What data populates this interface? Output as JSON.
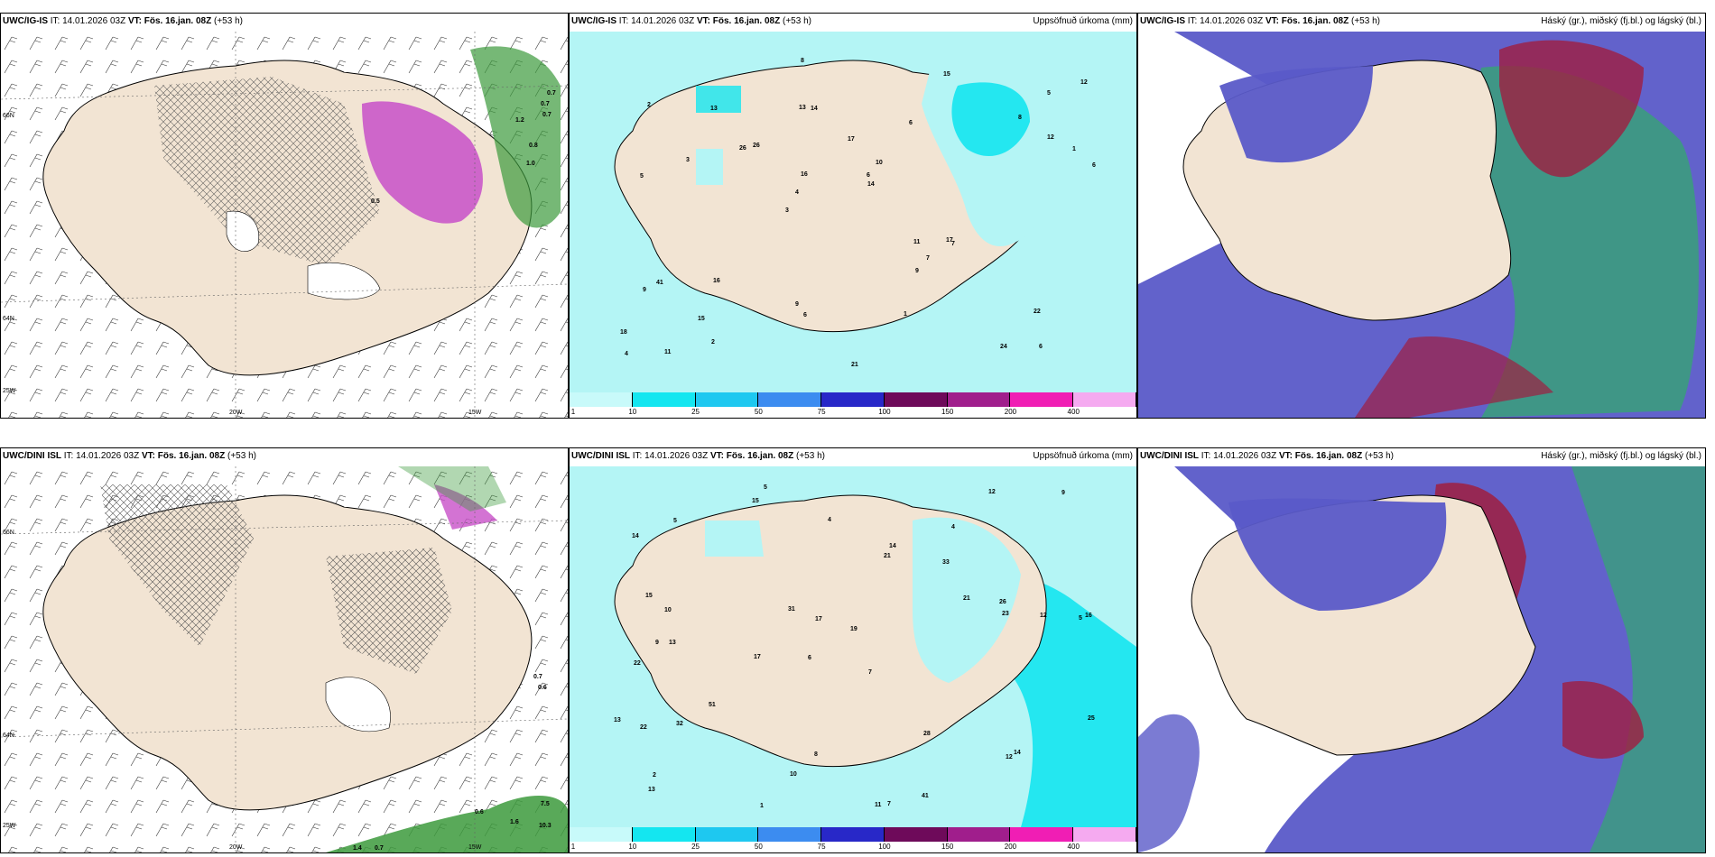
{
  "panels": [
    {
      "id": "tl",
      "model": "UWC/IG-IS",
      "it_label": "IT:",
      "it": "14.01.2026 03Z",
      "vt_label": "VT:",
      "vt": "Fös. 16.jan. 08Z",
      "lead": "(+53 h)",
      "right": ""
    },
    {
      "id": "tm",
      "model": "UWC/IG-IS",
      "it_label": "IT:",
      "it": "14.01.2026 03Z",
      "vt_label": "VT:",
      "vt": "Fös. 16.jan. 08Z",
      "lead": "(+53 h)",
      "right": "Uppsöfnuð úrkoma (mm)"
    },
    {
      "id": "tr",
      "model": "UWC/IG-IS",
      "it_label": "IT:",
      "it": "14.01.2026 03Z",
      "vt_label": "VT:",
      "vt": "Fös. 16.jan. 08Z",
      "lead": "(+53 h)",
      "right": "Háský (gr.), miðský (fj.bl.) og lágský (bl.)"
    },
    {
      "id": "bl",
      "model": "UWC/DINI ISL",
      "it_label": "IT:",
      "it": "14.01.2026 03Z",
      "vt_label": "VT:",
      "vt": "Fös. 16.jan. 08Z",
      "lead": "(+53 h)",
      "right": ""
    },
    {
      "id": "bm",
      "model": "UWC/DINI ISL",
      "it_label": "IT:",
      "it": "14.01.2026 03Z",
      "vt_label": "VT:",
      "vt": "Fös. 16.jan. 08Z",
      "lead": "(+53 h)",
      "right": "Uppsöfnuð úrkoma (mm)"
    },
    {
      "id": "br",
      "model": "UWC/DINI ISL",
      "it_label": "IT:",
      "it": "14.01.2026 03Z",
      "vt_label": "VT:",
      "vt": "Fös. 16.jan. 08Z",
      "lead": "(+53 h)",
      "right": "Háský (gr.), miðský (fj.bl.) og lágský (bl.)"
    }
  ],
  "colorbar": {
    "ticks": [
      "1",
      "10",
      "25",
      "50",
      "75",
      "100",
      "150",
      "200",
      "400"
    ],
    "colors": [
      "#c8fafa",
      "#14e6f0",
      "#1ec8f0",
      "#3c8cf0",
      "#2828c8",
      "#6e0a5a",
      "#a01e8c",
      "#f01eb4",
      "#f5aaf0"
    ]
  },
  "axis_labels": {
    "lon": [
      "20W",
      "15W"
    ],
    "lat": [
      "66N",
      "64N",
      "25W"
    ]
  },
  "colors": {
    "land": "#f2e4d3",
    "sea": "#ffffff",
    "precip_light": "#b4f5f5",
    "precip_mid": "#14e6f0",
    "low_cloud": "#5a5ac8",
    "mid_cloud": "#3aa07a",
    "high_cloud": "#a01e40",
    "pink_precip": "#c850c8",
    "green_precip": "#3c9a3c"
  },
  "precip_numbers_top": [
    "6",
    "5",
    "5",
    "3",
    "6",
    "11",
    "13",
    "17",
    "41",
    "26",
    "18",
    "15",
    "14",
    "10",
    "7",
    "2",
    "8",
    "6",
    "11",
    "12",
    "4",
    "9",
    "16",
    "13",
    "15",
    "16",
    "24",
    "22",
    "17",
    "21",
    "26",
    "3",
    "9",
    "2",
    "1",
    "6",
    "4",
    "6",
    "14",
    "9",
    "8",
    "12",
    "7",
    "1"
  ],
  "precip_numbers_bottom": [
    "5",
    "4",
    "5",
    "6",
    "7",
    "13",
    "14",
    "33",
    "22",
    "21",
    "19",
    "13",
    "15",
    "17",
    "11",
    "7",
    "8",
    "12",
    "21",
    "51",
    "10",
    "9",
    "16",
    "12",
    "13",
    "15",
    "17",
    "23",
    "14",
    "22",
    "12",
    "14",
    "32",
    "31",
    "28",
    "25",
    "26",
    "10",
    "9",
    "4",
    "2",
    "1",
    "41",
    "5"
  ],
  "wind_numbers_top": [
    "0.7",
    "0.7",
    "0.7",
    "0.5",
    "1.2",
    "0.8",
    "1.0"
  ],
  "wind_numbers_bottom": [
    "0.7",
    "0.6",
    "0.6",
    "7.5",
    "10.3",
    "1.6",
    "1.4",
    "0.7"
  ]
}
